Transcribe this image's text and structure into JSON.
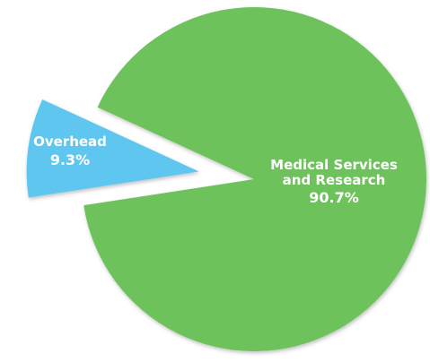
{
  "chart_data": {
    "type": "pie",
    "categories": [
      "Overhead",
      "Medical Services and Research"
    ],
    "values": [
      9.3,
      90.7
    ],
    "value_labels": [
      "9.3%",
      "90.7%"
    ],
    "colors": [
      "#5ec6f0",
      "#6dc25c"
    ],
    "exploded": [
      true,
      false
    ]
  }
}
